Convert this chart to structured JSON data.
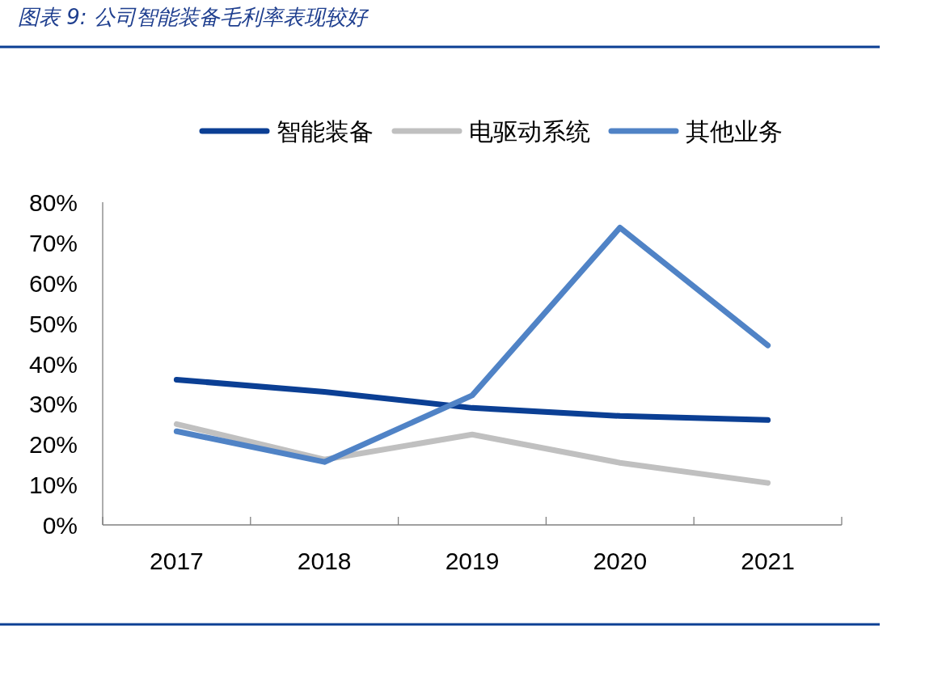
{
  "chart_data": {
    "type": "line",
    "title": "图表 9:  公司智能装备毛利率表现较好",
    "categories": [
      "2017",
      "2018",
      "2019",
      "2020",
      "2021"
    ],
    "series": [
      {
        "name": "智能装备",
        "color": "#0b3f94",
        "values": [
          36,
          33,
          29,
          27,
          26
        ]
      },
      {
        "name": "电驱动系统",
        "color": "#c0c0c0",
        "values": [
          25,
          16.2,
          22.4,
          15.4,
          10.4
        ]
      },
      {
        "name": "其他业务",
        "color": "#5083c6",
        "values": [
          23.2,
          15.6,
          32.1,
          73.7,
          44.5
        ]
      }
    ],
    "ylim": [
      0,
      80
    ],
    "yticks": [
      {
        "value": 0,
        "label": "0%"
      },
      {
        "value": 10,
        "label": "10%"
      },
      {
        "value": 20,
        "label": "20%"
      },
      {
        "value": 30,
        "label": "30%"
      },
      {
        "value": 40,
        "label": "40%"
      },
      {
        "value": 50,
        "label": "50%"
      },
      {
        "value": 60,
        "label": "60%"
      },
      {
        "value": 70,
        "label": "70%"
      },
      {
        "value": 80,
        "label": "80%"
      }
    ],
    "legend": "top",
    "grid": false,
    "marker": "none",
    "line_style": "solid"
  }
}
